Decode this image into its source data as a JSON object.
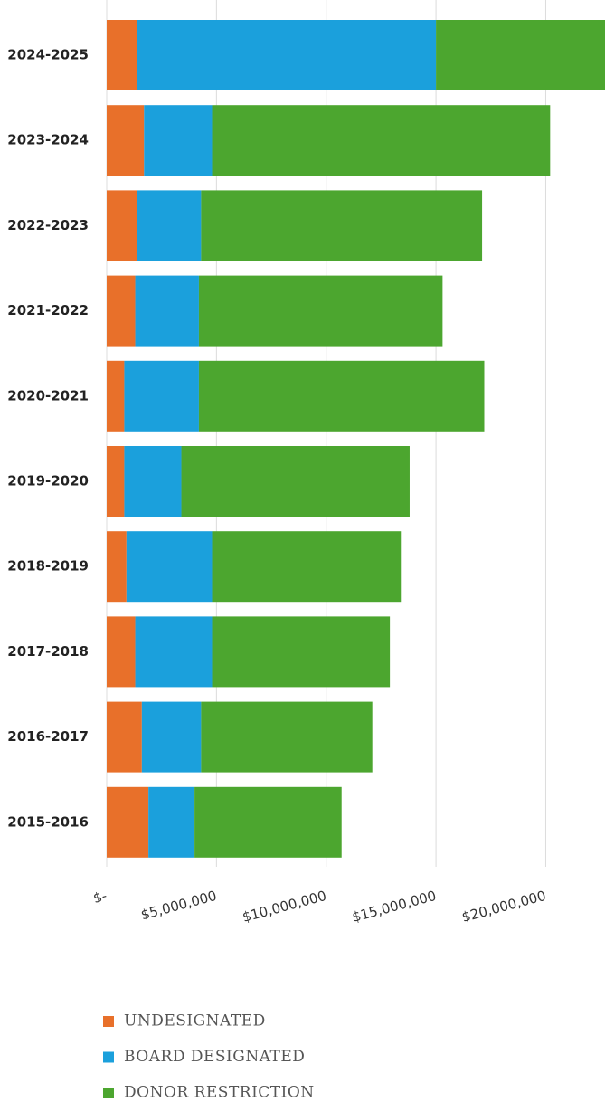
{
  "chart_data": {
    "type": "stacked-bar-horizontal",
    "categories": [
      "2024-2025",
      "2023-2024",
      "2022-2023",
      "2021-2022",
      "2020-2021",
      "2019-2020",
      "2018-2019",
      "2017-2018",
      "2016-2017",
      "2015-2016"
    ],
    "series": [
      {
        "name": "UNDESIGNATED",
        "color": "#e8702a",
        "values": [
          1400000,
          1700000,
          1400000,
          1300000,
          800000,
          800000,
          900000,
          1300000,
          1600000,
          1900000
        ]
      },
      {
        "name": "BOARD DESIGNATED",
        "color": "#1ba0dc",
        "values": [
          13600000,
          3100000,
          2900000,
          2900000,
          3400000,
          2600000,
          3900000,
          3500000,
          2700000,
          2100000
        ]
      },
      {
        "name": "DONOR RESTRICTION",
        "color": "#4ca62f",
        "values": [
          7700000,
          15400000,
          12800000,
          11100000,
          13000000,
          10400000,
          8600000,
          8100000,
          7800000,
          6700000
        ]
      }
    ],
    "xlim": [
      0,
      22700000
    ],
    "xticks": [
      {
        "value": 0,
        "label": "$-"
      },
      {
        "value": 5000000,
        "label": "$5,000,000"
      },
      {
        "value": 10000000,
        "label": "$10,000,000"
      },
      {
        "value": 15000000,
        "label": "$15,000,000"
      },
      {
        "value": 20000000,
        "label": "$20,000,000"
      }
    ],
    "grid": true
  }
}
